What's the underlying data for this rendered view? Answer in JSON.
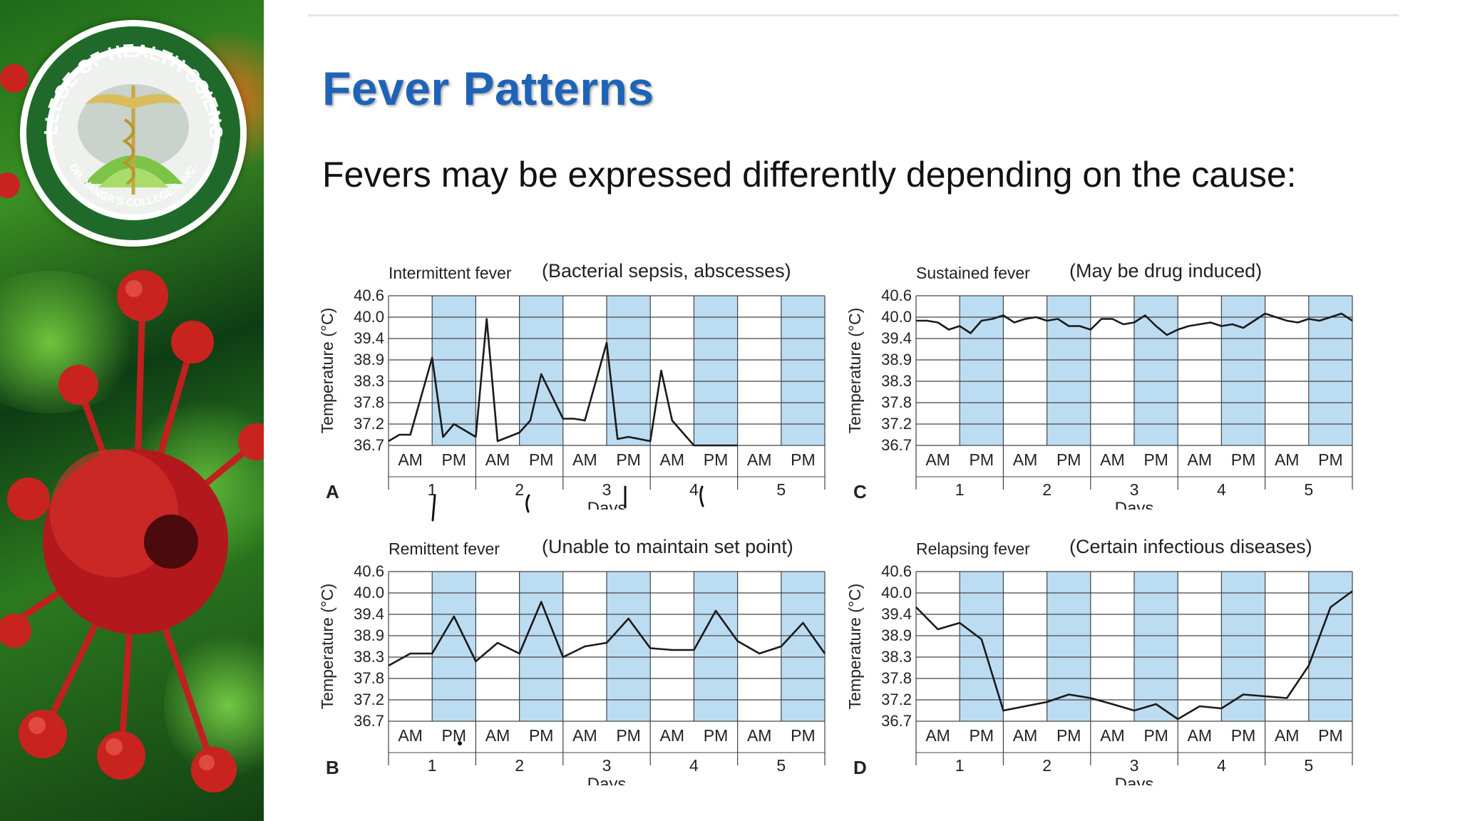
{
  "slide": {
    "title": "Fever Patterns",
    "subtitle": "Fevers may be expressed differently depending on the cause:",
    "seal": {
      "ring_text": "COLLEGE OF HEALTH SCIENCES",
      "side_text": "DR. YANGA'S COLLEGES, INC."
    }
  },
  "colors": {
    "title": "#1f63b8",
    "pm_band": "#bcdcf2",
    "grid": "#444444",
    "line": "#1a1a1a"
  },
  "chart_common": {
    "yticks": [
      "40.6",
      "40.0",
      "39.4",
      "38.9",
      "38.3",
      "37.8",
      "37.2",
      "36.7"
    ],
    "ylabel": "Temperature (°C)",
    "xlabel": "Days",
    "period_labels": [
      "AM",
      "PM"
    ],
    "days": [
      "1",
      "2",
      "3",
      "4",
      "5"
    ]
  },
  "chart_data": [
    {
      "type": "line",
      "letter": "A",
      "title": "Intermittent fever",
      "cause": "(Bacterial sepsis, abscesses)",
      "ylim": [
        36.7,
        40.6
      ],
      "x": [
        0,
        0.125,
        0.25,
        0.5,
        0.625,
        0.75,
        1.0,
        1.125,
        1.25,
        1.5,
        1.625,
        1.75,
        2.0,
        2.125,
        2.25,
        2.5,
        2.625,
        2.75,
        3.0,
        3.125,
        3.25,
        3.5,
        3.625,
        3.75,
        4.0
      ],
      "y": [
        36.8,
        36.95,
        36.95,
        38.95,
        36.9,
        37.2,
        36.9,
        39.95,
        36.8,
        37.0,
        37.3,
        38.5,
        37.35,
        37.35,
        37.3,
        39.3,
        36.85,
        36.9,
        36.8,
        38.6,
        37.3,
        36.7,
        36.7,
        36.7,
        36.7
      ]
    },
    {
      "type": "line",
      "letter": "C",
      "title": "Sustained fever",
      "cause": "(May be drug induced)",
      "ylim": [
        36.7,
        40.6
      ],
      "x": [
        0,
        0.125,
        0.25,
        0.375,
        0.5,
        0.625,
        0.75,
        0.875,
        1.0,
        1.125,
        1.25,
        1.375,
        1.5,
        1.625,
        1.75,
        1.875,
        2.0,
        2.125,
        2.25,
        2.375,
        2.5,
        2.625,
        2.75,
        2.875,
        3.0,
        3.125,
        3.25,
        3.375,
        3.5,
        3.625,
        3.75,
        3.875,
        4.0,
        4.125,
        4.25,
        4.375,
        4.5,
        4.625,
        4.75,
        4.875,
        5.0
      ],
      "y": [
        39.9,
        39.9,
        39.85,
        39.65,
        39.75,
        39.55,
        39.9,
        39.95,
        40.05,
        39.85,
        39.95,
        40.0,
        39.9,
        39.95,
        39.75,
        39.75,
        39.65,
        39.95,
        39.95,
        39.8,
        39.85,
        40.05,
        39.75,
        39.5,
        39.65,
        39.75,
        39.8,
        39.85,
        39.75,
        39.8,
        39.7,
        39.9,
        40.1,
        40.0,
        39.9,
        39.85,
        39.95,
        39.9,
        40.0,
        40.1,
        39.9
      ]
    },
    {
      "type": "line",
      "letter": "B",
      "title": "Remittent fever",
      "cause": "(Unable to maintain set point)",
      "ylim": [
        36.7,
        40.6
      ],
      "x": [
        0,
        0.25,
        0.5,
        0.75,
        1.0,
        1.25,
        1.5,
        1.75,
        2.0,
        2.25,
        2.5,
        2.75,
        3.0,
        3.25,
        3.5,
        3.75,
        4.0,
        4.25,
        4.5,
        4.75,
        5.0
      ],
      "y": [
        38.1,
        38.4,
        38.4,
        39.35,
        38.2,
        38.7,
        38.4,
        39.75,
        38.3,
        38.6,
        38.7,
        39.3,
        38.55,
        38.5,
        38.5,
        39.5,
        38.75,
        38.4,
        38.6,
        39.2,
        38.4
      ]
    },
    {
      "type": "line",
      "letter": "D",
      "title": "Relapsing fever",
      "cause": "(Certain infectious diseases)",
      "ylim": [
        36.7,
        40.6
      ],
      "x": [
        0,
        0.25,
        0.5,
        0.75,
        1.0,
        1.25,
        1.5,
        1.75,
        2.0,
        2.25,
        2.5,
        2.75,
        3.0,
        3.25,
        3.5,
        3.75,
        4.0,
        4.25,
        4.5,
        4.75,
        5.0
      ],
      "y": [
        39.6,
        39.05,
        39.2,
        38.8,
        36.95,
        37.05,
        37.15,
        37.35,
        37.25,
        37.1,
        36.95,
        37.1,
        36.75,
        37.05,
        37.0,
        37.35,
        37.3,
        37.25,
        38.1,
        39.6,
        40.05
      ]
    }
  ]
}
